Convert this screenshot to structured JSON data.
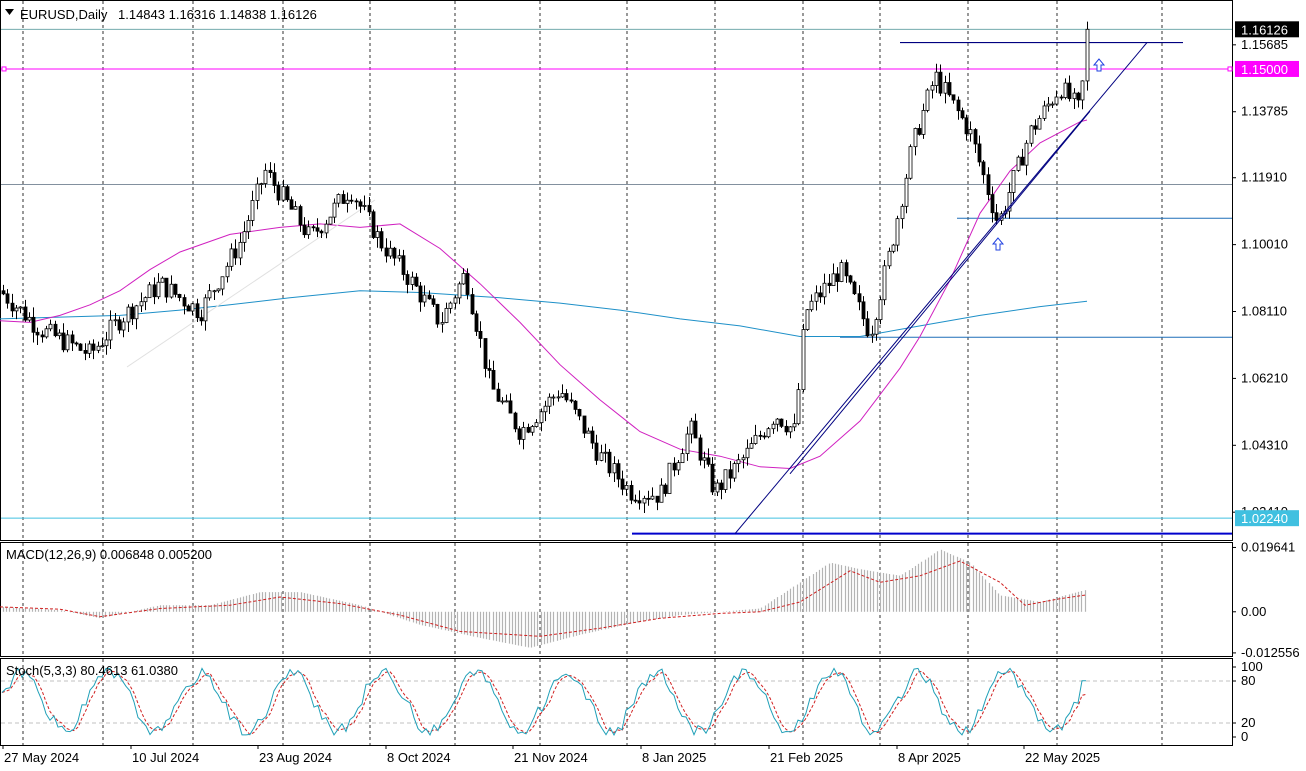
{
  "chart_data": [
    {
      "type": "candlestick",
      "symbol": "EURUSD",
      "timeframe": "Daily",
      "header": {
        "symbol_tf": "EURUSD,Daily",
        "ohlc": "1.14843 1.16316 1.14838 1.16126"
      },
      "y_ticks": [
        "1.15685",
        "1.13785",
        "1.11910",
        "1.10010",
        "1.08110",
        "1.06210",
        "1.04310",
        "1.02410"
      ],
      "y_tick_values": [
        1.15685,
        1.13785,
        1.1191,
        1.1001,
        1.0811,
        1.0621,
        1.0431,
        1.0241
      ],
      "ylim": [
        1.0162,
        1.1693
      ],
      "x_ticks": [
        "27 May 2024",
        "10 Jul 2024",
        "23 Aug 2024",
        "8 Oct 2024",
        "21 Nov 2024",
        "8 Jan 2025",
        "21 Feb 2025",
        "8 Apr 2025",
        "22 May 2025"
      ],
      "price_labels": {
        "current": "1.16126",
        "level_pink": "1.15000",
        "level_cyan": "1.02240"
      },
      "levels": {
        "current": 1.16126,
        "pink": 1.15,
        "cyan": 1.0224,
        "resistance_top": 1.1575,
        "support_bottom": 1.018,
        "mid_resistance": 1.1076,
        "lower_resistance": 1.0738,
        "upper_gray": 1.1172
      },
      "ma_fast": [
        [
          0,
          1.0785
        ],
        [
          30,
          1.078
        ],
        [
          60,
          1.08
        ],
        [
          90,
          1.083
        ],
        [
          120,
          1.087
        ],
        [
          150,
          1.093
        ],
        [
          180,
          1.098
        ],
        [
          230,
          1.103
        ],
        [
          280,
          1.105
        ],
        [
          320,
          1.106
        ],
        [
          360,
          1.105
        ],
        [
          400,
          1.106
        ],
        [
          440,
          1.099
        ],
        [
          480,
          1.089
        ],
        [
          520,
          1.078
        ],
        [
          560,
          1.066
        ],
        [
          600,
          1.056
        ],
        [
          640,
          1.047
        ],
        [
          680,
          1.042
        ],
        [
          720,
          1.04
        ],
        [
          760,
          1.037
        ],
        [
          790,
          1.0365
        ],
        [
          820,
          1.04
        ],
        [
          860,
          1.05
        ],
        [
          900,
          1.065
        ],
        [
          920,
          1.074
        ],
        [
          950,
          1.09
        ],
        [
          980,
          1.109
        ],
        [
          1010,
          1.121
        ],
        [
          1040,
          1.129
        ],
        [
          1080,
          1.135
        ],
        [
          1087,
          1.1355
        ]
      ],
      "ma_slow": [
        [
          0,
          1.079
        ],
        [
          60,
          1.0795
        ],
        [
          120,
          1.08
        ],
        [
          180,
          1.0815
        ],
        [
          230,
          1.083
        ],
        [
          290,
          1.085
        ],
        [
          360,
          1.087
        ],
        [
          420,
          1.0865
        ],
        [
          500,
          1.085
        ],
        [
          560,
          1.0835
        ],
        [
          620,
          1.0815
        ],
        [
          680,
          1.079
        ],
        [
          740,
          1.077
        ],
        [
          800,
          1.074
        ],
        [
          860,
          1.074
        ],
        [
          920,
          1.077
        ],
        [
          980,
          1.08
        ],
        [
          1040,
          1.0825
        ],
        [
          1087,
          1.084
        ]
      ],
      "candle_pivots": [
        [
          0,
          1.087
        ],
        [
          40,
          1.076
        ],
        [
          90,
          1.069
        ],
        [
          120,
          1.079
        ],
        [
          160,
          1.089
        ],
        [
          200,
          1.081
        ],
        [
          240,
          1.101
        ],
        [
          265,
          1.121
        ],
        [
          310,
          1.102
        ],
        [
          350,
          1.116
        ],
        [
          380,
          1.101
        ],
        [
          410,
          1.09
        ],
        [
          440,
          1.078
        ],
        [
          465,
          1.092
        ],
        [
          490,
          1.06
        ],
        [
          520,
          1.047
        ],
        [
          560,
          1.059
        ],
        [
          600,
          1.04
        ],
        [
          630,
          1.03
        ],
        [
          660,
          1.029
        ],
        [
          690,
          1.048
        ],
        [
          715,
          1.03
        ],
        [
          745,
          1.04
        ],
        [
          775,
          1.052
        ],
        [
          795,
          1.047
        ],
        [
          805,
          1.081
        ],
        [
          840,
          1.093
        ],
        [
          870,
          1.075
        ],
        [
          890,
          1.098
        ],
        [
          912,
          1.128
        ],
        [
          935,
          1.148
        ],
        [
          970,
          1.132
        ],
        [
          998,
          1.106
        ],
        [
          1030,
          1.132
        ],
        [
          1060,
          1.145
        ],
        [
          1080,
          1.138
        ],
        [
          1087,
          1.161
        ]
      ],
      "macd": {
        "label": "MACD(12,26,9) 0.006848 0.005200",
        "y_ticks": [
          "0.019641",
          "0.00",
          "-0.012556"
        ],
        "range": [
          -0.0135,
          0.021
        ],
        "hist_pivots": [
          [
            0,
            0.0015
          ],
          [
            60,
            0.0005
          ],
          [
            100,
            -0.002
          ],
          [
            160,
            0.002
          ],
          [
            210,
            0.002
          ],
          [
            260,
            0.006
          ],
          [
            300,
            0.006
          ],
          [
            360,
            0.002
          ],
          [
            420,
            -0.004
          ],
          [
            480,
            -0.008
          ],
          [
            530,
            -0.011
          ],
          [
            580,
            -0.007
          ],
          [
            640,
            -0.003
          ],
          [
            680,
            -0.001
          ],
          [
            720,
            0.0
          ],
          [
            760,
            0.001
          ],
          [
            800,
            0.009
          ],
          [
            830,
            0.015
          ],
          [
            860,
            0.013
          ],
          [
            900,
            0.011
          ],
          [
            940,
            0.019
          ],
          [
            970,
            0.015
          ],
          [
            1000,
            0.005
          ],
          [
            1040,
            0.003
          ],
          [
            1087,
            0.0068
          ]
        ],
        "signal_pivots": [
          [
            0,
            0.0015
          ],
          [
            60,
            0.0008
          ],
          [
            100,
            -0.0015
          ],
          [
            160,
            0.001
          ],
          [
            230,
            0.002
          ],
          [
            280,
            0.0045
          ],
          [
            340,
            0.0025
          ],
          [
            400,
            -0.001
          ],
          [
            460,
            -0.006
          ],
          [
            540,
            -0.0075
          ],
          [
            600,
            -0.005
          ],
          [
            660,
            -0.002
          ],
          [
            720,
            -0.0005
          ],
          [
            760,
            0.0
          ],
          [
            800,
            0.003
          ],
          [
            850,
            0.0125
          ],
          [
            880,
            0.009
          ],
          [
            920,
            0.011
          ],
          [
            960,
            0.0155
          ],
          [
            1000,
            0.009
          ],
          [
            1025,
            0.002
          ],
          [
            1060,
            0.004
          ],
          [
            1087,
            0.0052
          ]
        ]
      },
      "stoch": {
        "label": "Stoch(5,3,3) 80.4613 61.0380",
        "y_ticks": [
          "100",
          "80",
          "20",
          "0"
        ],
        "main": 80.4613,
        "signal": 61.038
      }
    }
  ]
}
